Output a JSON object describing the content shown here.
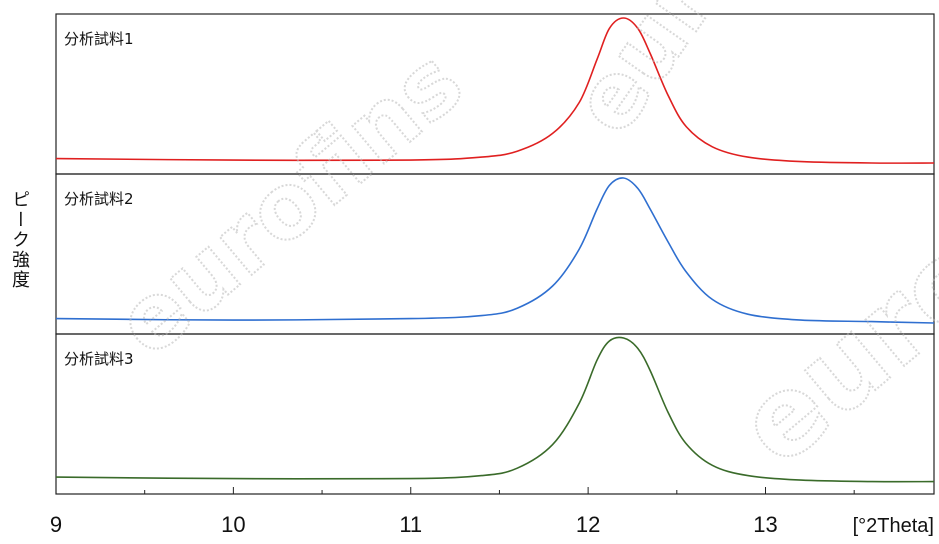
{
  "chart_data": {
    "type": "line",
    "ylabel": "ピーク強度",
    "x_unit_label": "[°2Theta]",
    "xlim": [
      9.0,
      13.95
    ],
    "xticks": [
      9,
      10,
      11,
      12,
      13
    ],
    "panels": [
      {
        "name": "分析試料1",
        "color": "#e02020",
        "x": [
          9.0,
          10.0,
          11.0,
          11.4,
          11.6,
          11.8,
          11.95,
          12.05,
          12.12,
          12.2,
          12.28,
          12.35,
          12.45,
          12.55,
          12.7,
          12.9,
          13.2,
          13.6,
          13.95
        ],
        "y": [
          0.05,
          0.04,
          0.04,
          0.06,
          0.1,
          0.22,
          0.43,
          0.72,
          0.93,
          1.0,
          0.93,
          0.76,
          0.48,
          0.27,
          0.13,
          0.06,
          0.03,
          0.02,
          0.02
        ]
      },
      {
        "name": "分析試料2",
        "color": "#2f6fd0",
        "x": [
          9.0,
          10.0,
          11.0,
          11.4,
          11.6,
          11.8,
          11.95,
          12.05,
          12.12,
          12.2,
          12.28,
          12.35,
          12.45,
          12.55,
          12.7,
          12.9,
          13.2,
          13.6,
          13.95
        ],
        "y": [
          0.05,
          0.04,
          0.05,
          0.07,
          0.12,
          0.27,
          0.52,
          0.79,
          0.95,
          1.0,
          0.93,
          0.79,
          0.57,
          0.37,
          0.18,
          0.08,
          0.04,
          0.03,
          0.02
        ]
      },
      {
        "name": "分析試料3",
        "color": "#3a6b2a",
        "x": [
          9.0,
          10.0,
          11.0,
          11.4,
          11.6,
          11.8,
          11.95,
          12.05,
          12.12,
          12.2,
          12.28,
          12.35,
          12.45,
          12.55,
          12.7,
          12.9,
          13.2,
          13.6,
          13.95
        ],
        "y": [
          0.06,
          0.05,
          0.05,
          0.07,
          0.12,
          0.28,
          0.56,
          0.85,
          0.98,
          1.0,
          0.93,
          0.78,
          0.5,
          0.29,
          0.14,
          0.07,
          0.04,
          0.03,
          0.03
        ]
      }
    ],
    "grid": false,
    "legend": "none"
  },
  "watermark_text": [
    "eurofins",
    "eurofins",
    "eurofins"
  ]
}
